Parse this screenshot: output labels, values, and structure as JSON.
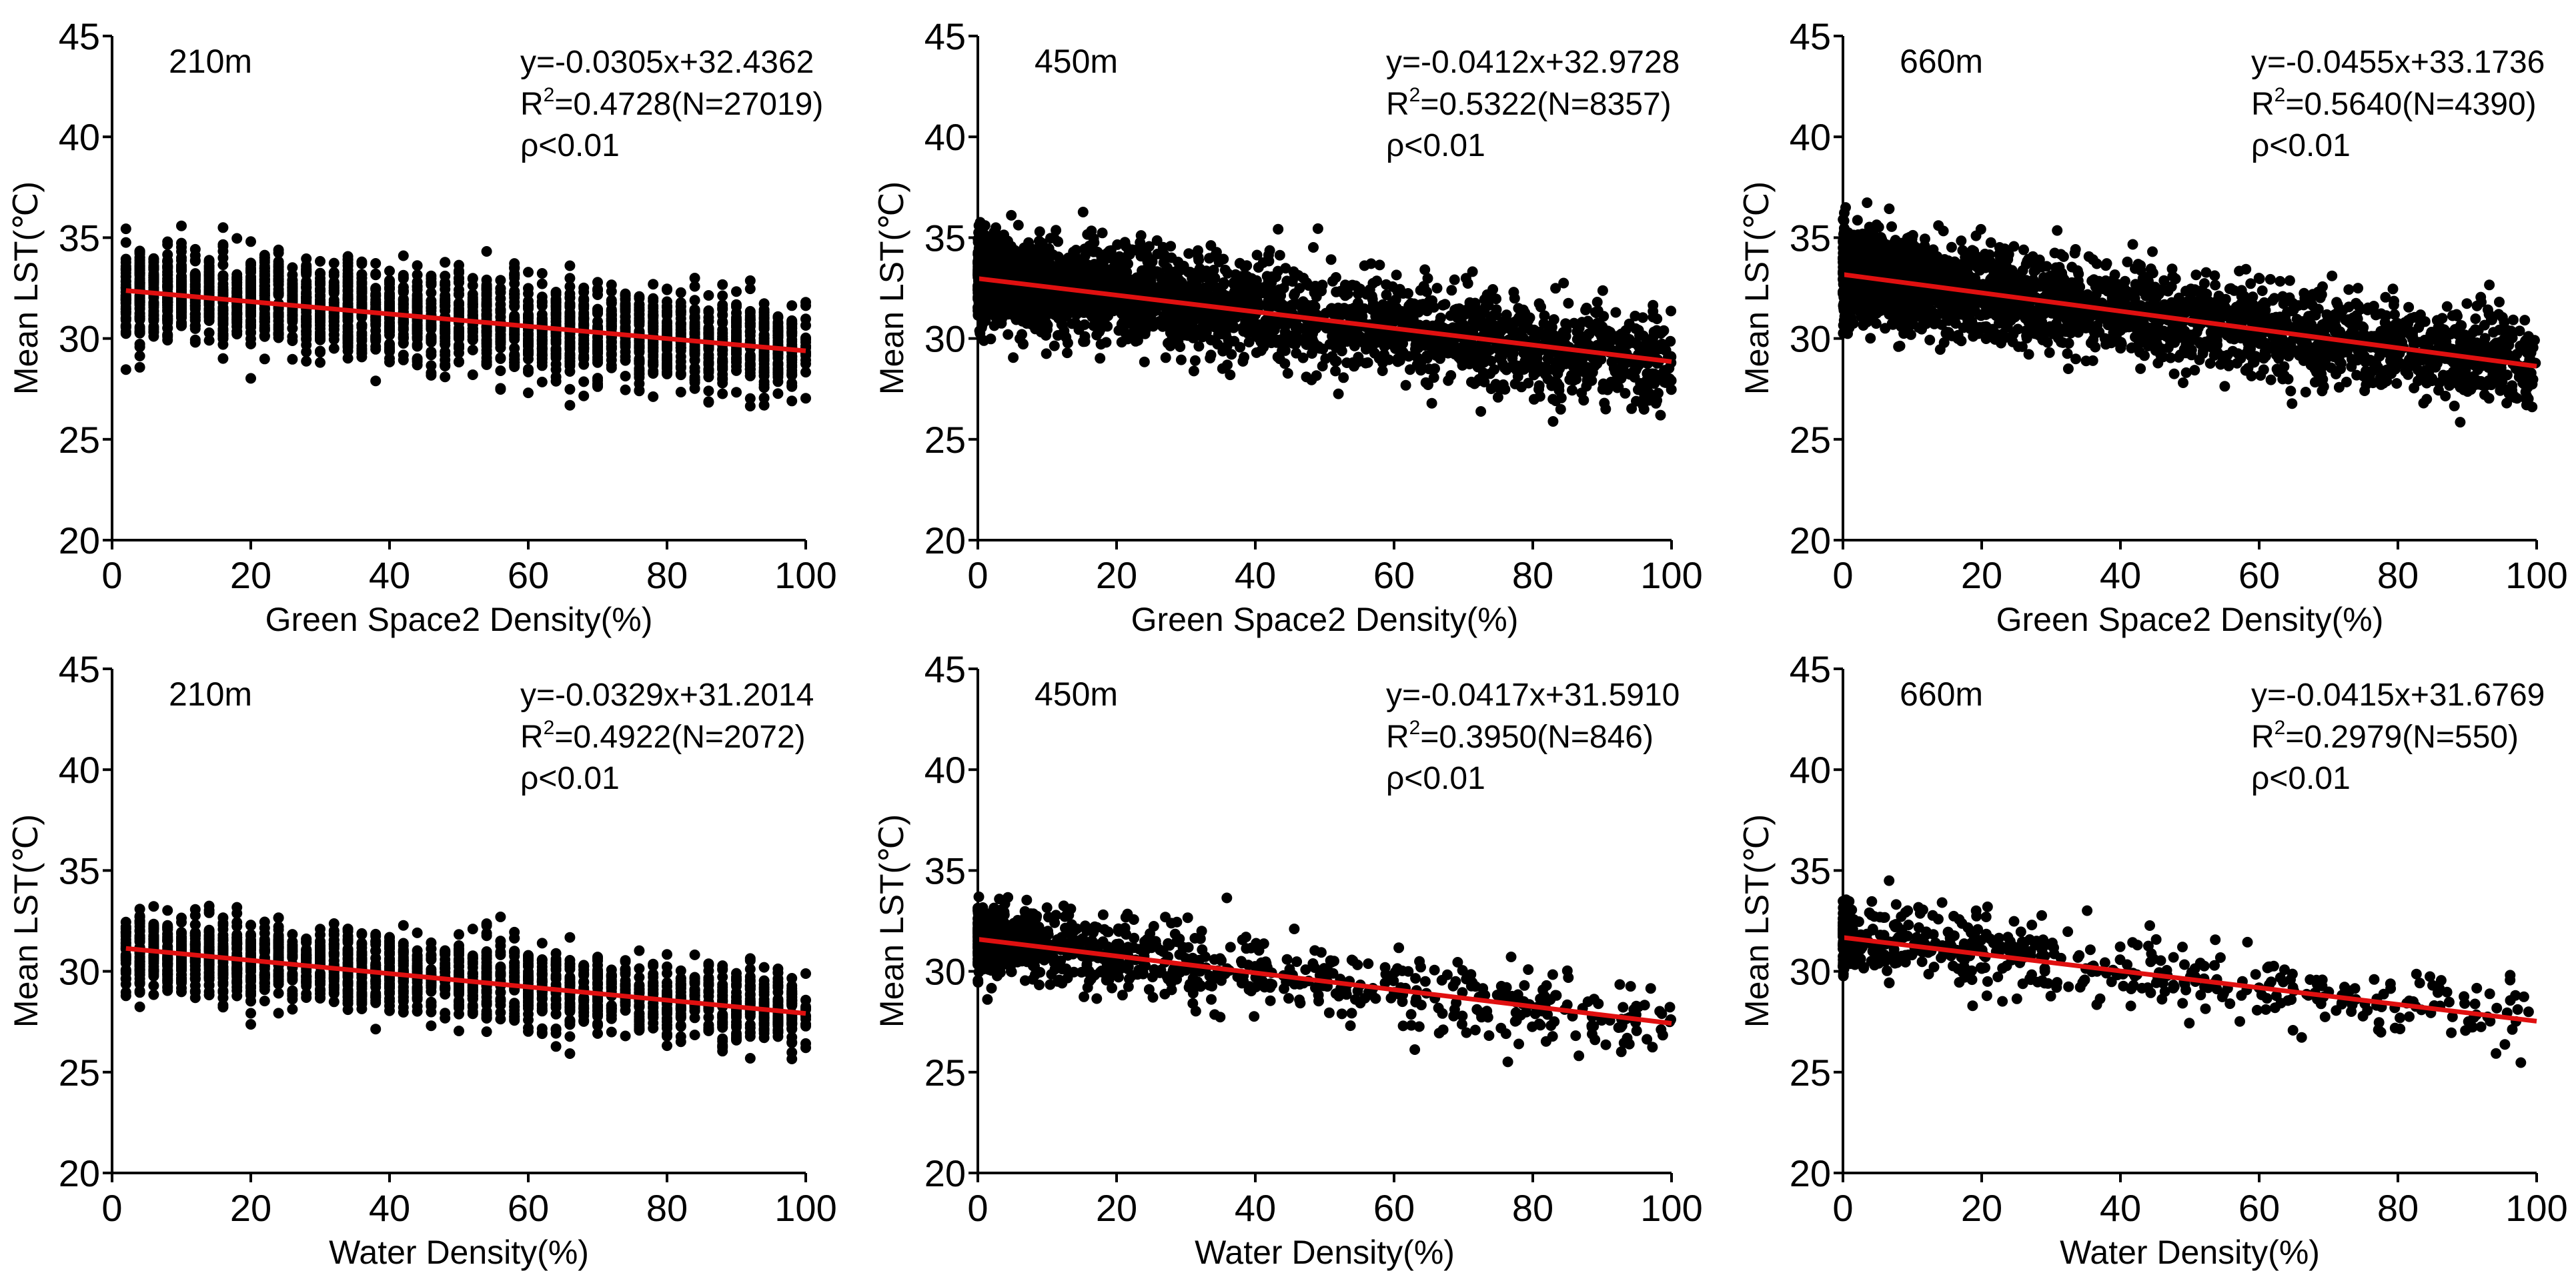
{
  "chart_data": [
    {
      "type": "scatter",
      "label": "210m",
      "equation": "y=-0.0305x+32.4362",
      "r2_prefix": "R",
      "r2_sup": "2",
      "r2_text": "=0.4728(N=27019)",
      "p_text": "ρ<0.01",
      "xlabel": "Green Space2 Density(%)",
      "ylabel": "Mean LST(℃)",
      "xlim": [
        0,
        100
      ],
      "ylim": [
        20,
        45
      ],
      "xticks": [
        "0",
        "20",
        "40",
        "60",
        "80",
        "100"
      ],
      "yticks": [
        "20",
        "25",
        "30",
        "35",
        "40",
        "45"
      ],
      "slope": -0.0305,
      "intercept": 32.4362,
      "n": 27019,
      "x_distribution": "discrete-columns",
      "x_min": 2,
      "y_spread": 3.6,
      "point_color": "#000000",
      "line_color": "#e01010"
    },
    {
      "type": "scatter",
      "label": "450m",
      "equation": "y=-0.0412x+32.9728",
      "r2_prefix": "R",
      "r2_sup": "2",
      "r2_text": "=0.5322(N=8357)",
      "p_text": "ρ<0.01",
      "xlabel": "Green Space2 Density(%)",
      "ylabel": "Mean LST(℃)",
      "xlim": [
        0,
        100
      ],
      "ylim": [
        20,
        45
      ],
      "xticks": [
        "0",
        "20",
        "40",
        "60",
        "80",
        "100"
      ],
      "yticks": [
        "20",
        "25",
        "30",
        "35",
        "40",
        "45"
      ],
      "slope": -0.0412,
      "intercept": 32.9728,
      "n": 8357,
      "x_distribution": "continuous",
      "x_min": 0,
      "y_spread": 3.8,
      "point_color": "#000000",
      "line_color": "#e01010"
    },
    {
      "type": "scatter",
      "label": "660m",
      "equation": "y=-0.0455x+33.1736",
      "r2_prefix": "R",
      "r2_sup": "2",
      "r2_text": "=0.5640(N=4390)",
      "p_text": "ρ<0.01",
      "xlabel": "Green Space2 Density(%)",
      "ylabel": "Mean LST(℃)",
      "xlim": [
        0,
        100
      ],
      "ylim": [
        20,
        45
      ],
      "xticks": [
        "0",
        "20",
        "40",
        "60",
        "80",
        "100"
      ],
      "yticks": [
        "20",
        "25",
        "30",
        "35",
        "40",
        "45"
      ],
      "slope": -0.0455,
      "intercept": 33.1736,
      "n": 4390,
      "x_distribution": "continuous",
      "x_min": 0,
      "y_spread": 3.6,
      "point_color": "#000000",
      "line_color": "#e01010"
    },
    {
      "type": "scatter",
      "label": "210m",
      "equation": "y=-0.0329x+31.2014",
      "r2_prefix": "R",
      "r2_sup": "2",
      "r2_text": "=0.4922(N=2072)",
      "p_text": "ρ<0.01",
      "xlabel": "Water Density(%)",
      "ylabel": "Mean LST(℃)",
      "xlim": [
        0,
        100
      ],
      "ylim": [
        20,
        45
      ],
      "xticks": [
        "0",
        "20",
        "40",
        "60",
        "80",
        "100"
      ],
      "yticks": [
        "20",
        "25",
        "30",
        "35",
        "40",
        "45"
      ],
      "slope": -0.0329,
      "intercept": 31.2014,
      "n": 2072,
      "x_distribution": "discrete-columns",
      "x_min": 2,
      "y_spread": 3.0,
      "point_color": "#000000",
      "line_color": "#e01010"
    },
    {
      "type": "scatter",
      "label": "450m",
      "equation": "y=-0.0417x+31.5910",
      "r2_prefix": "R",
      "r2_sup": "2",
      "r2_text": "=0.3950(N=846)",
      "p_text": "ρ<0.01",
      "xlabel": "Water Density(%)",
      "ylabel": "Mean LST(℃)",
      "xlim": [
        0,
        100
      ],
      "ylim": [
        20,
        45
      ],
      "xticks": [
        "0",
        "20",
        "40",
        "60",
        "80",
        "100"
      ],
      "yticks": [
        "20",
        "25",
        "30",
        "35",
        "40",
        "45"
      ],
      "slope": -0.0417,
      "intercept": 31.591,
      "n": 846,
      "x_distribution": "skewed-low",
      "x_min": 0,
      "y_spread": 3.0,
      "point_color": "#000000",
      "line_color": "#e01010"
    },
    {
      "type": "scatter",
      "label": "660m",
      "equation": "y=-0.0415x+31.6769",
      "r2_prefix": "R",
      "r2_sup": "2",
      "r2_text": "=0.2979(N=550)",
      "p_text": "ρ<0.01",
      "xlabel": "Water Density(%)",
      "ylabel": "Mean LST(℃)",
      "xlim": [
        0,
        100
      ],
      "ylim": [
        20,
        45
      ],
      "xticks": [
        "0",
        "20",
        "40",
        "60",
        "80",
        "100"
      ],
      "yticks": [
        "20",
        "25",
        "30",
        "35",
        "40",
        "45"
      ],
      "slope": -0.0415,
      "intercept": 31.6769,
      "n": 550,
      "x_distribution": "skewed-low",
      "x_min": 0,
      "y_spread": 3.0,
      "point_color": "#000000",
      "line_color": "#e01010"
    }
  ]
}
